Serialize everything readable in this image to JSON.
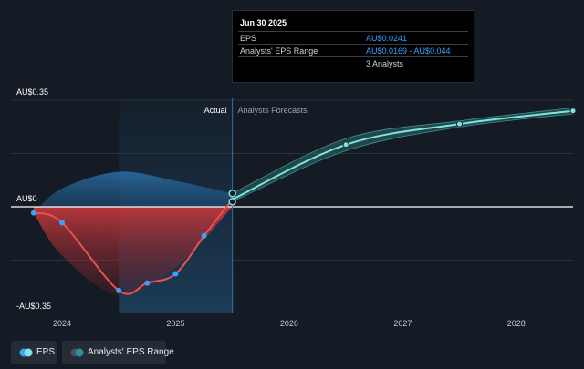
{
  "chart_data": {
    "type": "line",
    "y_axis": {
      "top_label": "AU$0.35",
      "zero_label": "AU$0",
      "bottom_label": "-AU$0.35",
      "ylim": [
        -0.35,
        0.35
      ]
    },
    "x_ticks": [
      "2024",
      "2025",
      "2026",
      "2027",
      "2028"
    ],
    "xlim": [
      2023.55,
      2028.5
    ],
    "divider_x": 2025.5,
    "section_labels": {
      "actual": "Actual",
      "forecast": "Analysts Forecasts"
    },
    "series": [
      {
        "name": "EPS",
        "color": "#e8534f",
        "points": [
          {
            "x": 2023.75,
            "y": -0.02
          },
          {
            "x": 2024.0,
            "y": -0.052
          },
          {
            "x": 2024.5,
            "y": -0.275
          },
          {
            "x": 2024.75,
            "y": -0.25
          },
          {
            "x": 2025.0,
            "y": -0.22
          },
          {
            "x": 2025.25,
            "y": -0.095
          },
          {
            "x": 2025.5,
            "y": 0.0241
          }
        ]
      },
      {
        "name": "EPS",
        "forecast": true,
        "color": "#7fe3e0",
        "points": [
          {
            "x": 2025.5,
            "y": 0.0241
          },
          {
            "x": 2026.5,
            "y": 0.204
          },
          {
            "x": 2027.5,
            "y": 0.272
          },
          {
            "x": 2028.5,
            "y": 0.315
          }
        ]
      }
    ],
    "analysts_range": [
      {
        "x": 2025.5,
        "low": 0.0169,
        "high": 0.044
      },
      {
        "x": 2026.5,
        "low": 0.184,
        "high": 0.224
      },
      {
        "x": 2027.5,
        "low": 0.262,
        "high": 0.282
      },
      {
        "x": 2028.5,
        "low": 0.305,
        "high": 0.325
      }
    ],
    "historic_band": [
      {
        "x": 2023.75,
        "low": -0.02,
        "high": -0.02
      },
      {
        "x": 2024.0,
        "low": -0.16,
        "high": 0.06
      },
      {
        "x": 2024.5,
        "low": -0.29,
        "high": 0.115
      },
      {
        "x": 2025.0,
        "low": -0.2,
        "high": 0.085
      },
      {
        "x": 2025.5,
        "low": 0.0,
        "high": 0.044
      }
    ],
    "highlight_region": {
      "from": 2024.5,
      "to": 2025.5
    }
  },
  "tooltip": {
    "date": "Jun 30 2025",
    "rows": [
      {
        "label": "EPS",
        "value": "AU$0.0241"
      },
      {
        "label": "Analysts' EPS Range",
        "value": "AU$0.0169 - AU$0.044"
      }
    ],
    "analysts_count": "3 Analysts"
  },
  "legend": [
    {
      "label": "EPS",
      "dot_color": "#7fe3e0",
      "dot_color_2": "#3aa1ff"
    },
    {
      "label": "Analysts' EPS Range",
      "dot_color": "#2e8fa0",
      "dot_color_2": "#4a4f57"
    }
  ]
}
